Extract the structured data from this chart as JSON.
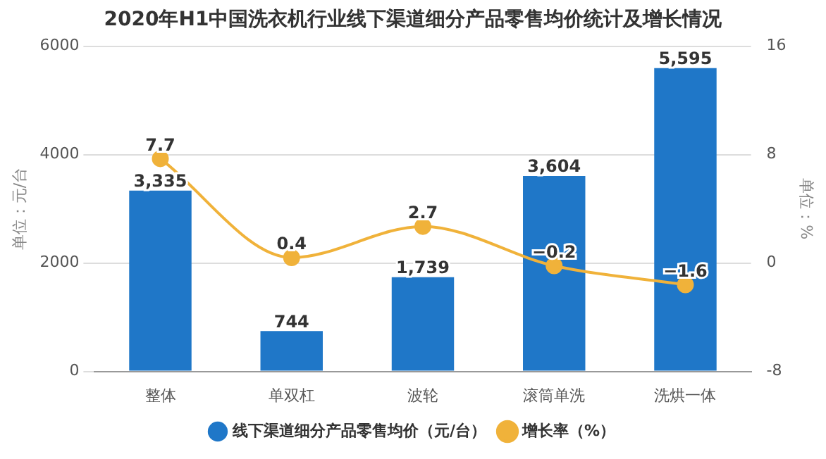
{
  "chart_data": {
    "type": "bar",
    "title": "2020年H1中国洗衣机行业线下渠道细分产品零售均价统计及增长情况",
    "categories": [
      "整体",
      "单双杠",
      "波轮",
      "滚筒单洗",
      "洗烘一体"
    ],
    "ylabel": "单位：元/台",
    "y2label": "单位：%",
    "ylim": [
      0,
      6000
    ],
    "yticks": [
      0,
      2000,
      4000,
      6000
    ],
    "y2lim": [
      -8,
      16
    ],
    "y2ticks": [
      -8,
      0,
      8,
      16
    ],
    "series": [
      {
        "name": "线下渠道细分产品零售均价（元/台）",
        "color": "#1f77c8",
        "values": [
          3335,
          744,
          1739,
          3604,
          5595
        ],
        "value_labels": [
          "3,335",
          "744",
          "1,739",
          "3,604",
          "5,595"
        ]
      },
      {
        "name": "增长率（%）",
        "type": "line",
        "axis": "y2",
        "color": "#f0b23a",
        "values": [
          7.7,
          0.4,
          2.7,
          -0.2,
          -1.6
        ],
        "value_labels": [
          "7.7",
          "0.4",
          "2.7",
          "−0.2",
          "−1.6"
        ],
        "marker": "circle"
      }
    ],
    "grid": "y",
    "legend": "bottom"
  }
}
